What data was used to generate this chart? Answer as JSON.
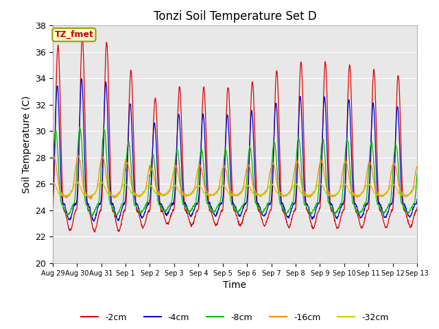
{
  "title": "Tonzi Soil Temperature Set D",
  "xlabel": "Time",
  "ylabel": "Soil Temperature (C)",
  "ylim": [
    20,
    38
  ],
  "annotation": "TZ_fmet",
  "series_colors": {
    "-2cm": "#dd0000",
    "-4cm": "#0000cc",
    "-8cm": "#00bb00",
    "-16cm": "#ff8800",
    "-32cm": "#cccc00"
  },
  "tick_labels": [
    "Aug 29",
    "Aug 30",
    "Aug 31",
    "Sep 1",
    "Sep 2",
    "Sep 3",
    "Sep 4",
    "Sep 5",
    "Sep 6",
    "Sep 7",
    "Sep 8",
    "Sep 9",
    "Sep 10",
    "Sep 11",
    "Sep 12",
    "Sep 13"
  ],
  "days": 15,
  "pts_per_day": 96
}
